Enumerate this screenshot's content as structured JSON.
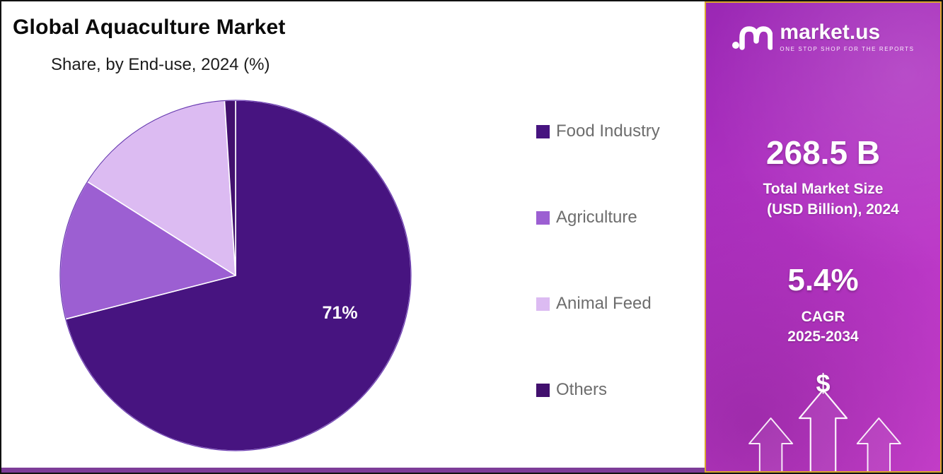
{
  "chart": {
    "title": "Global Aquaculture Market",
    "subtitle": "Share, by End-use, 2024 (%)"
  },
  "chart_data": {
    "type": "pie",
    "categories": [
      "Food Industry",
      "Agriculture",
      "Animal Feed",
      "Others"
    ],
    "values": [
      71,
      13,
      15,
      1
    ],
    "colors": [
      "#471480",
      "#9c5fd2",
      "#dcbbf2",
      "#42106e"
    ],
    "shown_label": {
      "slice_index": 0,
      "text": "71%"
    },
    "legend_position": "right",
    "start_angle_deg": 0,
    "direction": "clockwise",
    "slice_border_color": "#ffffff"
  },
  "panel": {
    "brand": {
      "name": "market.us",
      "tagline": "ONE STOP SHOP FOR THE REPORTS"
    },
    "market_size": {
      "value": "268.5 B",
      "label_line1": "Total Market Size",
      "label_line2": "(USD Billion), 2024"
    },
    "cagr": {
      "value": "5.4%",
      "label_line1": "CAGR",
      "label_line2": "2025-2034"
    },
    "dollar_symbol": "$",
    "colors": {
      "gradient_start": "#9a27b4",
      "gradient_end": "#cb41cf",
      "border": "#d9a62e",
      "bottom_strip": "#7d3c98"
    }
  }
}
